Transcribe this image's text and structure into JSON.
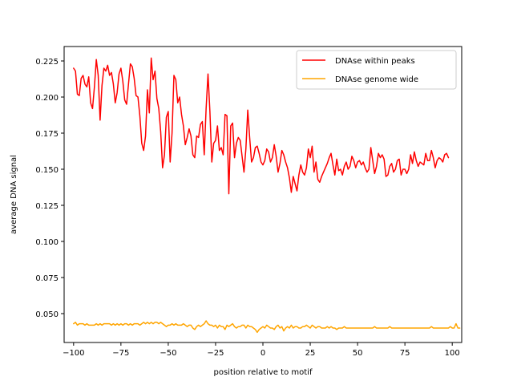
{
  "chart_data": {
    "type": "line",
    "title": "",
    "xlabel": "position relative to motif",
    "ylabel": "average DNA signal",
    "xlim": [
      -105,
      105
    ],
    "ylim": [
      0.03,
      0.235
    ],
    "xticks": [
      -100,
      -75,
      -50,
      -25,
      0,
      25,
      50,
      75,
      100
    ],
    "yticks": [
      0.05,
      0.075,
      0.1,
      0.125,
      0.15,
      0.175,
      0.2,
      0.225
    ],
    "xtick_labels": [
      "−100",
      "−75",
      "−50",
      "−25",
      "0",
      "25",
      "50",
      "75",
      "100"
    ],
    "ytick_labels": [
      "0.050",
      "0.075",
      "0.100",
      "0.125",
      "0.150",
      "0.175",
      "0.200",
      "0.225"
    ],
    "grid": false,
    "legend_position": "top-right",
    "series": [
      {
        "name": "DNAse within peaks",
        "color": "#ff0000",
        "x_start": -100,
        "x_step": 1,
        "values": [
          0.22,
          0.218,
          0.202,
          0.201,
          0.213,
          0.215,
          0.209,
          0.207,
          0.214,
          0.196,
          0.192,
          0.207,
          0.226,
          0.215,
          0.184,
          0.208,
          0.22,
          0.218,
          0.222,
          0.215,
          0.217,
          0.209,
          0.196,
          0.203,
          0.216,
          0.22,
          0.211,
          0.198,
          0.195,
          0.209,
          0.223,
          0.221,
          0.213,
          0.201,
          0.2,
          0.187,
          0.168,
          0.163,
          0.173,
          0.205,
          0.189,
          0.227,
          0.212,
          0.218,
          0.199,
          0.192,
          0.176,
          0.151,
          0.16,
          0.186,
          0.19,
          0.155,
          0.175,
          0.215,
          0.212,
          0.196,
          0.2,
          0.188,
          0.18,
          0.167,
          0.172,
          0.178,
          0.173,
          0.16,
          0.158,
          0.173,
          0.172,
          0.181,
          0.183,
          0.16,
          0.192,
          0.216,
          0.19,
          0.155,
          0.168,
          0.17,
          0.18,
          0.163,
          0.165,
          0.16,
          0.188,
          0.187,
          0.133,
          0.18,
          0.182,
          0.158,
          0.168,
          0.172,
          0.17,
          0.159,
          0.148,
          0.164,
          0.191,
          0.172,
          0.155,
          0.158,
          0.165,
          0.166,
          0.161,
          0.155,
          0.153,
          0.156,
          0.164,
          0.162,
          0.155,
          0.158,
          0.167,
          0.159,
          0.148,
          0.154,
          0.163,
          0.16,
          0.155,
          0.151,
          0.144,
          0.134,
          0.145,
          0.14,
          0.135,
          0.146,
          0.153,
          0.148,
          0.146,
          0.151,
          0.164,
          0.158,
          0.166,
          0.148,
          0.155,
          0.143,
          0.141,
          0.145,
          0.148,
          0.151,
          0.154,
          0.158,
          0.161,
          0.153,
          0.146,
          0.157,
          0.149,
          0.15,
          0.146,
          0.152,
          0.155,
          0.15,
          0.152,
          0.159,
          0.156,
          0.151,
          0.155,
          0.156,
          0.153,
          0.155,
          0.151,
          0.148,
          0.15,
          0.165,
          0.156,
          0.147,
          0.152,
          0.161,
          0.158,
          0.16,
          0.157,
          0.145,
          0.146,
          0.152,
          0.154,
          0.148,
          0.15,
          0.156,
          0.157,
          0.146,
          0.15,
          0.15,
          0.147,
          0.15,
          0.16,
          0.154,
          0.162,
          0.156,
          0.152,
          0.155,
          0.154,
          0.153,
          0.161,
          0.156,
          0.156,
          0.163,
          0.158,
          0.151,
          0.156,
          0.158,
          0.157,
          0.155,
          0.16,
          0.161,
          0.158
        ]
      },
      {
        "name": "DNAse genome wide",
        "color": "#ffa500",
        "x_start": -100,
        "x_step": 1,
        "values": [
          0.043,
          0.044,
          0.042,
          0.043,
          0.043,
          0.043,
          0.042,
          0.043,
          0.042,
          0.042,
          0.042,
          0.042,
          0.043,
          0.042,
          0.043,
          0.042,
          0.043,
          0.043,
          0.043,
          0.043,
          0.042,
          0.043,
          0.042,
          0.043,
          0.042,
          0.043,
          0.042,
          0.043,
          0.043,
          0.042,
          0.043,
          0.042,
          0.043,
          0.043,
          0.043,
          0.042,
          0.043,
          0.044,
          0.043,
          0.044,
          0.043,
          0.044,
          0.043,
          0.044,
          0.044,
          0.043,
          0.044,
          0.043,
          0.042,
          0.041,
          0.042,
          0.042,
          0.043,
          0.042,
          0.043,
          0.042,
          0.042,
          0.042,
          0.043,
          0.042,
          0.041,
          0.042,
          0.042,
          0.04,
          0.039,
          0.041,
          0.042,
          0.041,
          0.042,
          0.043,
          0.045,
          0.043,
          0.042,
          0.042,
          0.041,
          0.042,
          0.04,
          0.042,
          0.041,
          0.041,
          0.039,
          0.042,
          0.041,
          0.042,
          0.043,
          0.041,
          0.04,
          0.041,
          0.041,
          0.042,
          0.042,
          0.04,
          0.042,
          0.041,
          0.041,
          0.04,
          0.039,
          0.037,
          0.039,
          0.04,
          0.041,
          0.04,
          0.042,
          0.041,
          0.04,
          0.04,
          0.039,
          0.041,
          0.042,
          0.04,
          0.041,
          0.038,
          0.04,
          0.041,
          0.04,
          0.042,
          0.04,
          0.041,
          0.041,
          0.04,
          0.04,
          0.041,
          0.041,
          0.042,
          0.041,
          0.04,
          0.042,
          0.041,
          0.04,
          0.041,
          0.041,
          0.04,
          0.04,
          0.04,
          0.041,
          0.04,
          0.041,
          0.04,
          0.04,
          0.039,
          0.04,
          0.04,
          0.04,
          0.041,
          0.04,
          0.04,
          0.04,
          0.04,
          0.04,
          0.04,
          0.04,
          0.04,
          0.04,
          0.04,
          0.04,
          0.04,
          0.04,
          0.04,
          0.04,
          0.041,
          0.04,
          0.04,
          0.04,
          0.04,
          0.04,
          0.04,
          0.04,
          0.041,
          0.04,
          0.04,
          0.04,
          0.04,
          0.04,
          0.04,
          0.04,
          0.04,
          0.04,
          0.04,
          0.04,
          0.04,
          0.04,
          0.04,
          0.04,
          0.04,
          0.04,
          0.04,
          0.04,
          0.04,
          0.04,
          0.041,
          0.04,
          0.04,
          0.04,
          0.04,
          0.04,
          0.04,
          0.04,
          0.04,
          0.04,
          0.041,
          0.04,
          0.04,
          0.043,
          0.04,
          0.04
        ]
      }
    ]
  }
}
